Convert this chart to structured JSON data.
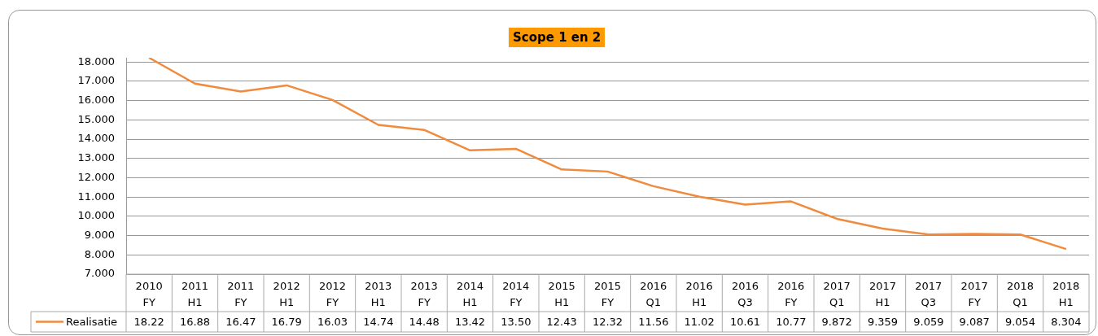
{
  "chart_data": {
    "type": "line",
    "title": "Scope 1 en 2",
    "categories": [
      "2010 FY",
      "2011 H1",
      "2011 FY",
      "2012 H1",
      "2012 FY",
      "2013 H1",
      "2013 FY",
      "2014 H1",
      "2014 FY",
      "2015 H1",
      "2015 FY",
      "2016 Q1",
      "2016 H1",
      "2016 Q3",
      "2016 FY",
      "2017 Q1",
      "2017 H1",
      "2017 Q3",
      "2017 FY",
      "2018 Q1",
      "2018 H1"
    ],
    "series": [
      {
        "name": "Realisatie",
        "color": "#f08a3c",
        "values": [
          18.22,
          16.88,
          16.47,
          16.79,
          16.03,
          14.74,
          14.48,
          13.42,
          13.5,
          12.43,
          12.32,
          11.56,
          11.02,
          10.61,
          10.77,
          9.872,
          9.359,
          9.059,
          9.087,
          9.054,
          8.304
        ],
        "value_labels": [
          "18.22",
          "16.88",
          "16.47",
          "16.79",
          "16.03",
          "14.74",
          "14.48",
          "13.42",
          "13.50",
          "12.43",
          "12.32",
          "11.56",
          "11.02",
          "10.61",
          "10.77",
          "9.872",
          "9.359",
          "9.059",
          "9.087",
          "9.054",
          "8.304"
        ]
      }
    ],
    "ylim": [
      7,
      18.22
    ],
    "yticks": [
      {
        "value": 7,
        "label": "7.000"
      },
      {
        "value": 8,
        "label": "8.000"
      },
      {
        "value": 9,
        "label": "9.000"
      },
      {
        "value": 10,
        "label": "10.000"
      },
      {
        "value": 11,
        "label": "11.000"
      },
      {
        "value": 12,
        "label": "12.000"
      },
      {
        "value": 13,
        "label": "13.000"
      },
      {
        "value": 14,
        "label": "14.000"
      },
      {
        "value": 15,
        "label": "15.000"
      },
      {
        "value": 16,
        "label": "16.000"
      },
      {
        "value": 17,
        "label": "17.000"
      },
      {
        "value": 18,
        "label": "18.000"
      }
    ],
    "grid": "y",
    "legend": "bottom",
    "marker": "none",
    "line_style": "solid"
  }
}
